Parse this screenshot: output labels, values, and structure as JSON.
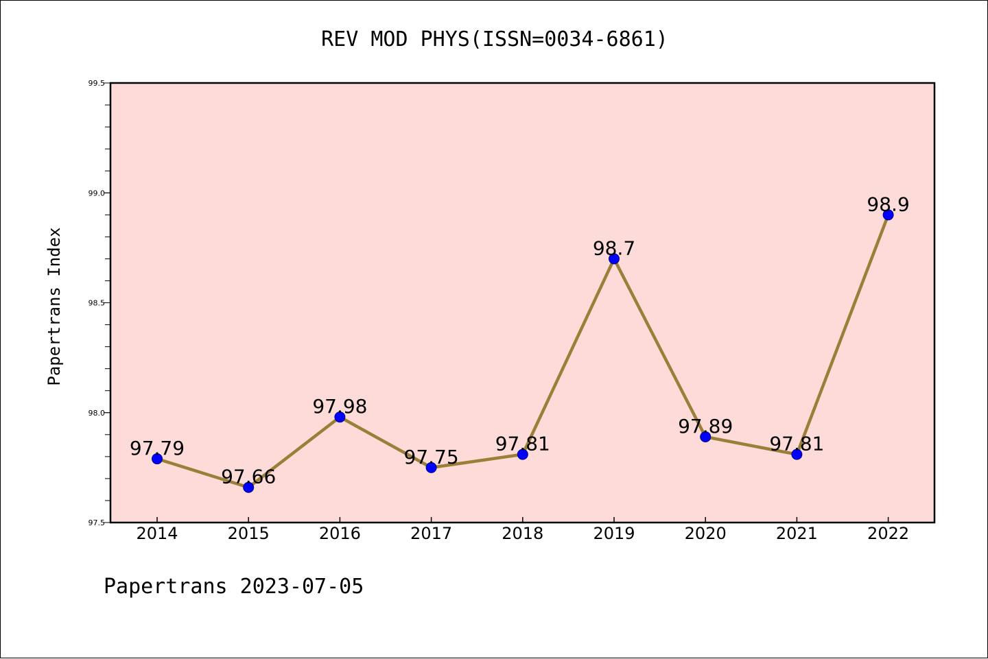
{
  "chart_data": {
    "type": "line",
    "title": "REV MOD PHYS(ISSN=0034-6861)",
    "xlabel": "",
    "ylabel": "Papertrans Index",
    "footer": "Papertrans 2023-07-05",
    "categories": [
      "2014",
      "2015",
      "2016",
      "2017",
      "2018",
      "2019",
      "2020",
      "2021",
      "2022"
    ],
    "values": [
      97.79,
      97.66,
      97.98,
      97.75,
      97.81,
      98.7,
      97.89,
      97.81,
      98.9
    ],
    "data_labels": [
      "97.79",
      "97.66",
      "97.98",
      "97.75",
      "97.81",
      "98.7",
      "97.89",
      "97.81",
      "98.9"
    ],
    "ylim": [
      97.5,
      99.5
    ],
    "yticks": [
      "97.5",
      "98.0",
      "98.5",
      "99.0",
      "99.5"
    ],
    "y_minor_step": 0.1,
    "grid": false,
    "legend": "none",
    "colors": {
      "plot_background": "#fddbd8",
      "line": "#9a7f38",
      "marker_fill": "#0000ff",
      "marker_edge": "#000080",
      "axes": "#000000"
    }
  }
}
